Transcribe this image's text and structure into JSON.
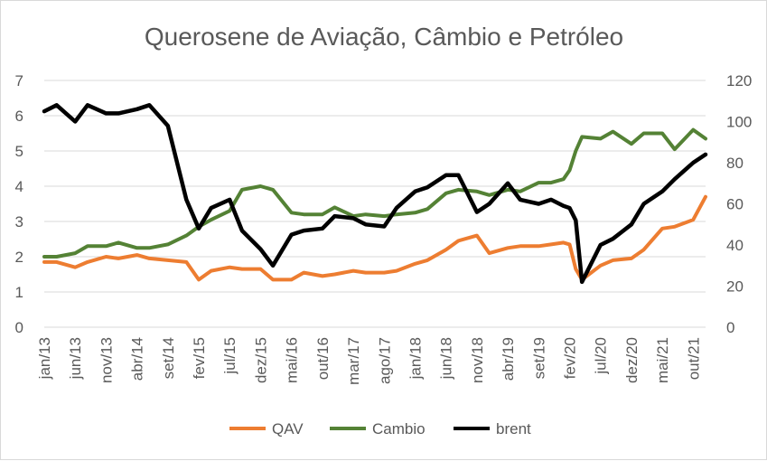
{
  "chart_data": {
    "type": "line",
    "title": "Querosene de Aviação, Câmbio e Petróleo",
    "xlabel": "",
    "ylabel": "",
    "x_tick_labels": [
      "jan/13",
      "jun/13",
      "nov/13",
      "abr/14",
      "set/14",
      "fev/15",
      "jul/15",
      "dez/15",
      "mai/16",
      "out/16",
      "mar/17",
      "ago/17",
      "jan/18",
      "jun/18",
      "nov/18",
      "abr/19",
      "set/19",
      "fev/20",
      "jul/20",
      "dez/20",
      "mai/21",
      "out/21"
    ],
    "ylim_left": [
      0,
      7
    ],
    "yticks_left": [
      "0",
      "1",
      "2",
      "3",
      "4",
      "5",
      "6",
      "7"
    ],
    "ylim_right": [
      0,
      120
    ],
    "yticks_right": [
      "0",
      "20",
      "40",
      "60",
      "80",
      "100",
      "120"
    ],
    "grid": "horizontal",
    "legend_position": "bottom",
    "colors": {
      "QAV": "#ed7d31",
      "Cambio": "#548235",
      "brent": "#000000",
      "grid": "#d9d9d9",
      "text": "#595959"
    },
    "series": [
      {
        "name": "QAV",
        "axis": "left",
        "x": [
          "jan/13",
          "mar/13",
          "jun/13",
          "ago/13",
          "nov/13",
          "jan/14",
          "abr/14",
          "jun/14",
          "set/14",
          "dez/14",
          "fev/15",
          "abr/15",
          "jul/15",
          "set/15",
          "dez/15",
          "fev/16",
          "mai/16",
          "jul/16",
          "out/16",
          "dez/16",
          "mar/17",
          "mai/17",
          "ago/17",
          "out/17",
          "jan/18",
          "mar/18",
          "jun/18",
          "ago/18",
          "nov/18",
          "jan/19",
          "abr/19",
          "jun/19",
          "set/19",
          "nov/19",
          "jan/20",
          "fev/20",
          "mar/20",
          "abr/20",
          "jul/20",
          "set/20",
          "dez/20",
          "fev/21",
          "mai/21",
          "jul/21",
          "out/21",
          "dez/21"
        ],
        "values": [
          1.85,
          1.85,
          1.7,
          1.85,
          2.0,
          1.95,
          2.05,
          1.95,
          1.9,
          1.85,
          1.35,
          1.6,
          1.7,
          1.65,
          1.65,
          1.35,
          1.35,
          1.55,
          1.45,
          1.5,
          1.6,
          1.55,
          1.55,
          1.6,
          1.8,
          1.9,
          2.2,
          2.45,
          2.6,
          2.1,
          2.25,
          2.3,
          2.3,
          2.35,
          2.4,
          2.35,
          1.65,
          1.35,
          1.75,
          1.9,
          1.95,
          2.2,
          2.8,
          2.85,
          3.05,
          3.7
        ]
      },
      {
        "name": "Cambio",
        "axis": "left",
        "x": [
          "jan/13",
          "mar/13",
          "jun/13",
          "ago/13",
          "nov/13",
          "jan/14",
          "abr/14",
          "jun/14",
          "set/14",
          "dez/14",
          "fev/15",
          "abr/15",
          "jul/15",
          "set/15",
          "dez/15",
          "fev/16",
          "mai/16",
          "jul/16",
          "out/16",
          "dez/16",
          "mar/17",
          "mai/17",
          "ago/17",
          "out/17",
          "jan/18",
          "mar/18",
          "jun/18",
          "ago/18",
          "nov/18",
          "jan/19",
          "abr/19",
          "jun/19",
          "set/19",
          "nov/19",
          "jan/20",
          "fev/20",
          "mar/20",
          "abr/20",
          "jul/20",
          "set/20",
          "dez/20",
          "fev/21",
          "mai/21",
          "jul/21",
          "out/21",
          "dez/21"
        ],
        "values": [
          2.0,
          2.0,
          2.1,
          2.3,
          2.3,
          2.4,
          2.25,
          2.25,
          2.35,
          2.6,
          2.85,
          3.05,
          3.3,
          3.9,
          4.0,
          3.9,
          3.25,
          3.2,
          3.2,
          3.4,
          3.15,
          3.2,
          3.15,
          3.2,
          3.25,
          3.35,
          3.8,
          3.9,
          3.85,
          3.75,
          3.9,
          3.85,
          4.1,
          4.1,
          4.2,
          4.45,
          5.0,
          5.4,
          5.35,
          5.55,
          5.2,
          5.5,
          5.5,
          5.05,
          5.6,
          5.35
        ]
      },
      {
        "name": "brent",
        "axis": "right",
        "x": [
          "jan/13",
          "mar/13",
          "jun/13",
          "ago/13",
          "nov/13",
          "jan/14",
          "abr/14",
          "jun/14",
          "set/14",
          "dez/14",
          "fev/15",
          "abr/15",
          "jul/15",
          "set/15",
          "dez/15",
          "fev/16",
          "mai/16",
          "jul/16",
          "out/16",
          "dez/16",
          "mar/17",
          "mai/17",
          "ago/17",
          "out/17",
          "jan/18",
          "mar/18",
          "jun/18",
          "ago/18",
          "nov/18",
          "jan/19",
          "abr/19",
          "jun/19",
          "set/19",
          "nov/19",
          "jan/20",
          "fev/20",
          "mar/20",
          "abr/20",
          "jul/20",
          "set/20",
          "dez/20",
          "fev/21",
          "mai/21",
          "jul/21",
          "out/21",
          "dez/21"
        ],
        "values": [
          105,
          108,
          100,
          108,
          104,
          104,
          106,
          108,
          98,
          62,
          48,
          58,
          62,
          47,
          38,
          30,
          45,
          47,
          48,
          54,
          53,
          50,
          49,
          58,
          66,
          68,
          74,
          74,
          56,
          60,
          70,
          62,
          60,
          62,
          59,
          58,
          52,
          22,
          40,
          43,
          50,
          60,
          66,
          72,
          80,
          84
        ]
      }
    ]
  }
}
